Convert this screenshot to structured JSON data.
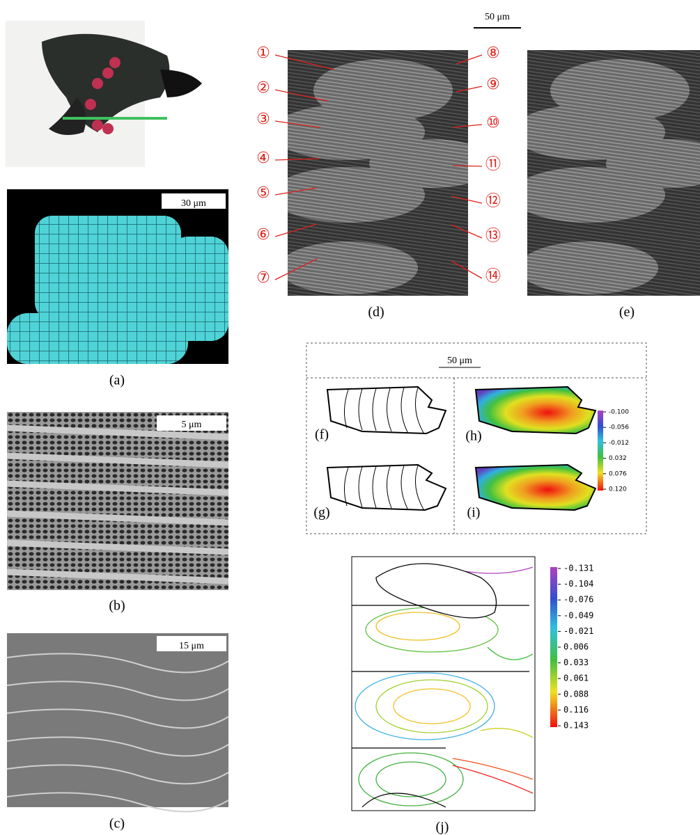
{
  "labels": [
    "(a)",
    "(b)",
    "(c)",
    "(d)",
    "(e)",
    "(f)",
    "(g)",
    "(h)",
    "(i)",
    "(j)"
  ],
  "scale_bars": {
    "a": "30 μm",
    "b": "5 μm",
    "c": "15 μm",
    "d": "50 μm",
    "f_i": "50 μm"
  },
  "scale_numbers": {
    "left": [
      "①",
      "②",
      "③",
      "④",
      "⑤",
      "⑥",
      "⑦"
    ],
    "right": [
      "⑧",
      "⑨",
      "⑩",
      "⑪",
      "⑫",
      "⑬",
      "⑭"
    ]
  },
  "colorbar_h_i": {
    "ticks": [
      "-0.100",
      "-0.056",
      "-0.012",
      "0.032",
      "0.076",
      "0.120"
    ]
  },
  "colorbar_j": {
    "ticks": [
      "-0.131",
      "-0.104",
      "-0.076",
      "-0.049",
      "-0.021",
      "0.006",
      "0.033",
      "0.061",
      "0.088",
      "0.116",
      "0.143"
    ]
  }
}
